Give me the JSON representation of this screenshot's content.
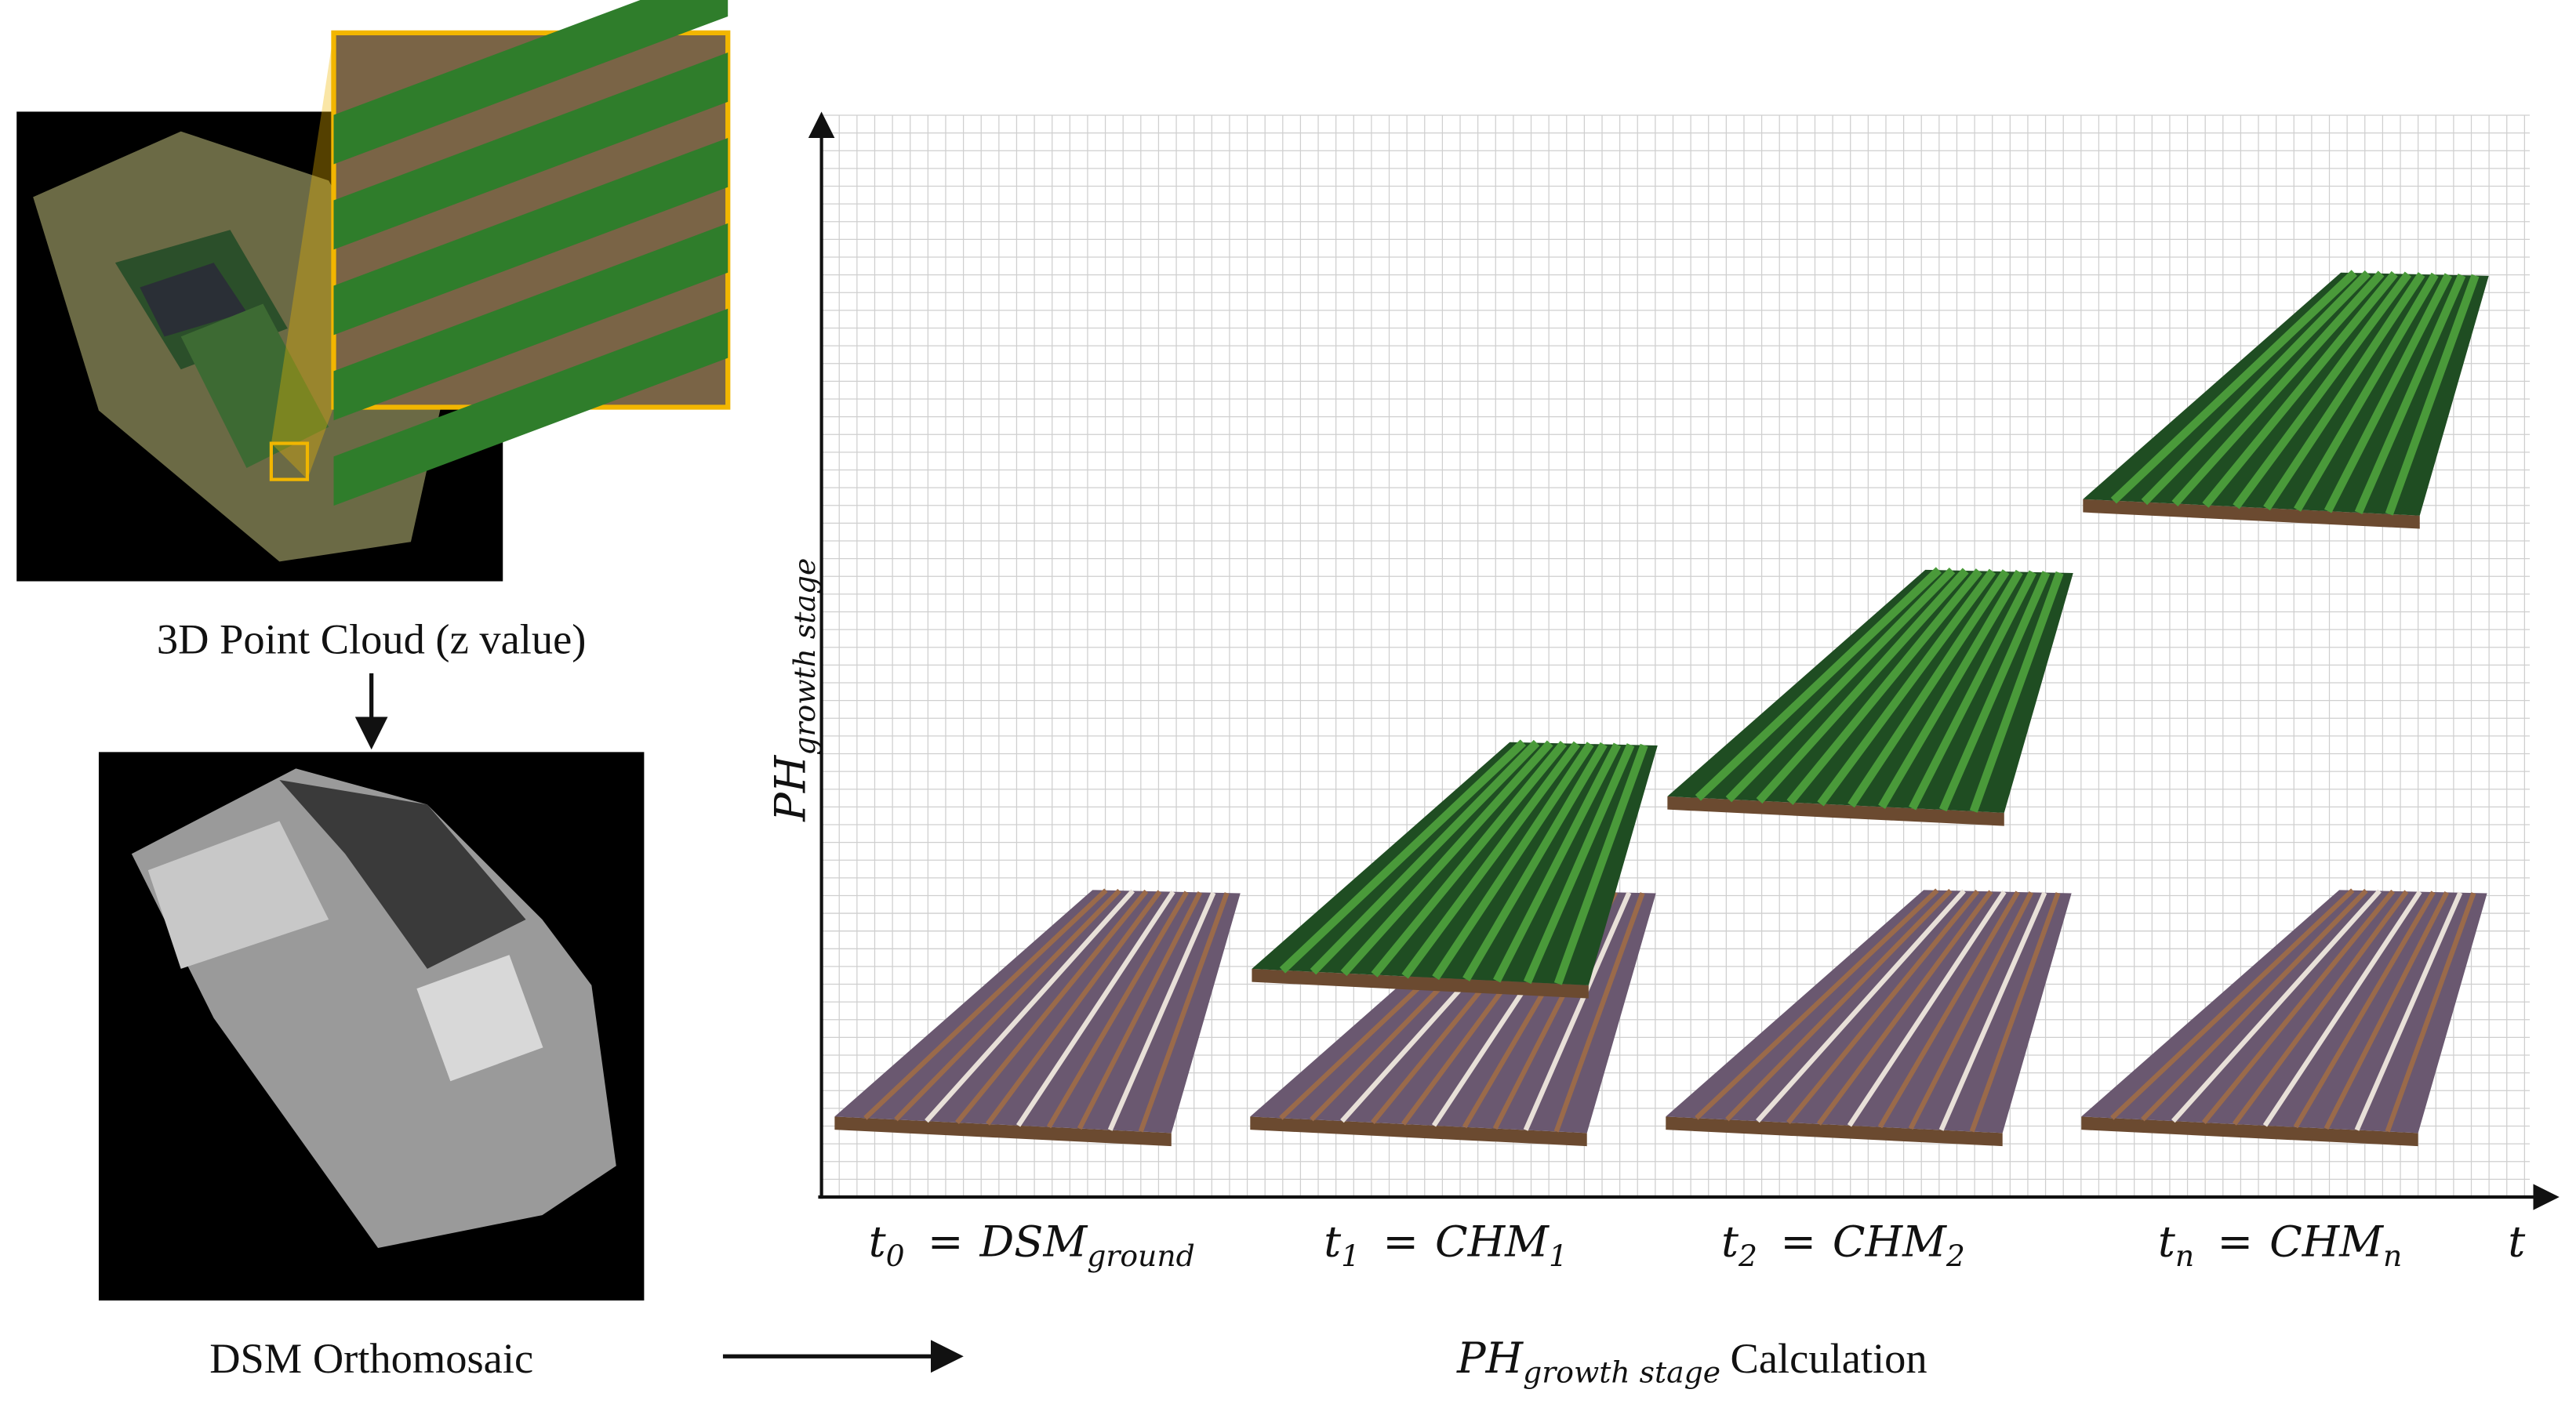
{
  "point_cloud": {
    "caption": "3D Point Cloud (z value)"
  },
  "dsm": {
    "caption": "DSM Orthomosaic"
  },
  "axes": {
    "y_label": {
      "base": "PH",
      "sub": "growth stage"
    },
    "x_end": "t"
  },
  "stages": [
    {
      "t": "t",
      "t_sub": "0",
      "eq": "=",
      "m": "DSM",
      "m_sub": "ground"
    },
    {
      "t": "t",
      "t_sub": "1",
      "eq": "=",
      "m": "CHM",
      "m_sub": "1"
    },
    {
      "t": "t",
      "t_sub": "2",
      "eq": "=",
      "m": "CHM",
      "m_sub": "2"
    },
    {
      "t": "t",
      "t_sub": "n",
      "eq": "=",
      "m": "CHM",
      "m_sub": "n"
    }
  ],
  "calculation": {
    "base": "PH",
    "sub": "growth stage",
    "text": "Calculation"
  }
}
